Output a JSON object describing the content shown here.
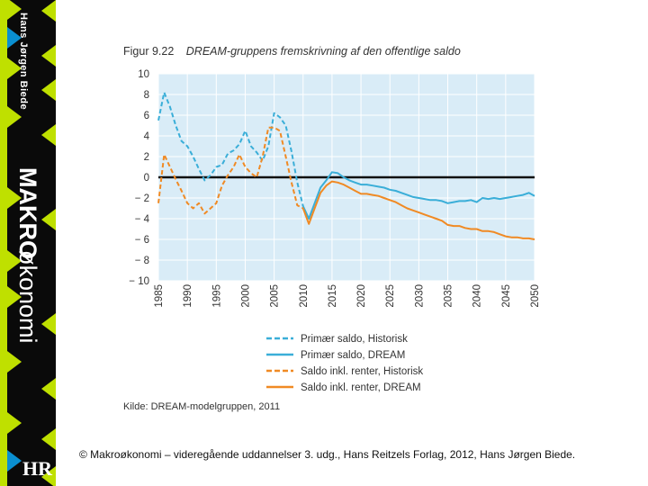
{
  "book": {
    "author": "Hans Jørgen Biede",
    "title_bold": "MAKRO",
    "title_rest": "økonomi",
    "publisher_logo": "HR",
    "colors": {
      "spine": "#0a0a0a",
      "accent": "#bfe000",
      "blue_accent": "#0a8fd0"
    }
  },
  "figure": {
    "number": "Figur 9.22",
    "title": "DREAM-gruppens fremskrivning af den offentlige saldo",
    "source": "Kilde: DREAM-modelgruppen, 2011"
  },
  "footer": {
    "copyright": "© Makroøkonomi – videregående uddannelser 3. udg., Hans Reitzels Forlag, 2012, Hans Jørgen Biede."
  },
  "chart_data": {
    "type": "line",
    "title": "DREAM-gruppens fremskrivning af den offentlige saldo",
    "xlim": [
      1985,
      2050
    ],
    "ylim": [
      -10,
      10
    ],
    "x_ticks": [
      1985,
      1990,
      1995,
      2000,
      2005,
      2010,
      2015,
      2020,
      2025,
      2030,
      2035,
      2040,
      2045,
      2050
    ],
    "x_tick_labels": [
      "1985",
      "1990",
      "1995",
      "2000",
      "2005",
      "2010",
      "2015",
      "2020",
      "2025",
      "2030",
      "2035",
      "2040",
      "2045",
      "2050"
    ],
    "y_ticks": [
      -10,
      -8,
      -6,
      -4,
      -2,
      0,
      2,
      4,
      6,
      8,
      10
    ],
    "y_tick_labels": [
      "− 10",
      "− 8",
      "− 6",
      "− 4",
      "− 2",
      "0",
      "2",
      "4",
      "6",
      "8",
      "10"
    ],
    "grid": true,
    "legend_position": "bottom",
    "colors": {
      "plot_bg": "#d9ecf7",
      "grid": "#ffffff",
      "zero_line": "#111111",
      "blue": "#3aaed8",
      "orange": "#f08a24"
    },
    "series": [
      {
        "name": "Primær saldo, Historisk",
        "color": "#3aaed8",
        "dashed": true,
        "x": [
          1985,
          1986,
          1987,
          1988,
          1989,
          1990,
          1991,
          1992,
          1993,
          1994,
          1995,
          1996,
          1997,
          1998,
          1999,
          2000,
          2001,
          2002,
          2003,
          2004,
          2005,
          2006,
          2007,
          2008,
          2009,
          2010
        ],
        "y": [
          5.5,
          8.2,
          6.8,
          5.0,
          3.5,
          3.0,
          2.0,
          0.8,
          -0.3,
          0.2,
          1.0,
          1.2,
          2.3,
          2.6,
          3.2,
          4.5,
          3.0,
          2.4,
          1.6,
          3.0,
          6.2,
          5.8,
          5.0,
          2.5,
          -0.5,
          -2.8
        ]
      },
      {
        "name": "Primær saldo, DREAM",
        "color": "#3aaed8",
        "dashed": false,
        "x": [
          2010,
          2011,
          2012,
          2013,
          2014,
          2015,
          2016,
          2017,
          2018,
          2019,
          2020,
          2021,
          2022,
          2023,
          2024,
          2025,
          2026,
          2027,
          2028,
          2029,
          2030,
          2031,
          2032,
          2033,
          2034,
          2035,
          2036,
          2037,
          2038,
          2039,
          2040,
          2041,
          2042,
          2043,
          2044,
          2045,
          2046,
          2047,
          2048,
          2049,
          2050
        ],
        "y": [
          -2.8,
          -4.0,
          -2.5,
          -1.0,
          -0.3,
          0.5,
          0.4,
          0.0,
          -0.3,
          -0.5,
          -0.7,
          -0.7,
          -0.8,
          -0.9,
          -1.0,
          -1.2,
          -1.3,
          -1.5,
          -1.7,
          -1.9,
          -2.0,
          -2.1,
          -2.2,
          -2.2,
          -2.3,
          -2.5,
          -2.4,
          -2.3,
          -2.3,
          -2.2,
          -2.4,
          -2.0,
          -2.1,
          -2.0,
          -2.1,
          -2.0,
          -1.9,
          -1.8,
          -1.7,
          -1.5,
          -1.8
        ]
      },
      {
        "name": "Saldo inkl. renter, Historisk",
        "color": "#f08a24",
        "dashed": true,
        "x": [
          1985,
          1986,
          1987,
          1988,
          1989,
          1990,
          1991,
          1992,
          1993,
          1994,
          1995,
          1996,
          1997,
          1998,
          1999,
          2000,
          2001,
          2002,
          2003,
          2004,
          2005,
          2006,
          2007,
          2008,
          2009,
          2010
        ],
        "y": [
          -2.5,
          2.2,
          1.0,
          -0.2,
          -1.3,
          -2.5,
          -3.0,
          -2.5,
          -3.5,
          -3.0,
          -2.5,
          -0.8,
          0.2,
          1.0,
          2.2,
          1.0,
          0.4,
          0.0,
          2.0,
          4.8,
          4.8,
          4.5,
          2.0,
          -0.5,
          -2.7,
          -3.0
        ]
      },
      {
        "name": "Saldo inkl. renter, DREAM",
        "color": "#f08a24",
        "dashed": false,
        "x": [
          2010,
          2011,
          2012,
          2013,
          2014,
          2015,
          2016,
          2017,
          2018,
          2019,
          2020,
          2021,
          2022,
          2023,
          2024,
          2025,
          2026,
          2027,
          2028,
          2029,
          2030,
          2031,
          2032,
          2033,
          2034,
          2035,
          2036,
          2037,
          2038,
          2039,
          2040,
          2041,
          2042,
          2043,
          2044,
          2045,
          2046,
          2047,
          2048,
          2049,
          2050
        ],
        "y": [
          -3.0,
          -4.5,
          -3.0,
          -1.5,
          -0.8,
          -0.4,
          -0.5,
          -0.7,
          -1.0,
          -1.3,
          -1.6,
          -1.6,
          -1.7,
          -1.8,
          -2.0,
          -2.2,
          -2.4,
          -2.7,
          -3.0,
          -3.2,
          -3.4,
          -3.6,
          -3.8,
          -4.0,
          -4.2,
          -4.6,
          -4.7,
          -4.7,
          -4.9,
          -5.0,
          -5.0,
          -5.2,
          -5.2,
          -5.3,
          -5.5,
          -5.7,
          -5.8,
          -5.8,
          -5.9,
          -5.9,
          -6.0
        ]
      }
    ]
  }
}
